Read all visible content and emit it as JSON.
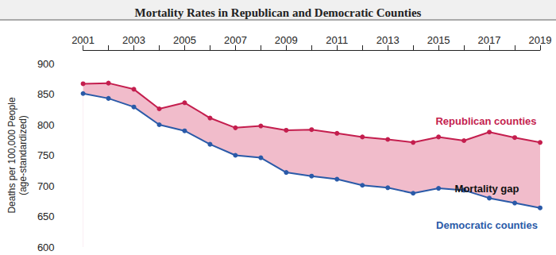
{
  "chart_data": {
    "type": "line",
    "title": "Mortality Rates in Republican and Democratic Counties",
    "y_label": "Deaths per 100,000 People (age-standardized)",
    "categories": [
      "2001",
      null,
      "2003",
      null,
      "2005",
      null,
      "2007",
      null,
      "2009",
      null,
      "2011",
      null,
      "2013",
      null,
      "2015",
      null,
      "2017",
      null,
      "2019"
    ],
    "series": [
      {
        "name": "Republican counties",
        "color": "#c41e4e",
        "marker": "circle",
        "values": [
          867,
          868,
          858,
          826,
          836,
          811,
          795,
          798,
          791,
          792,
          786,
          780,
          776,
          771,
          780,
          774,
          788,
          779,
          771
        ]
      },
      {
        "name": "Democratic counties",
        "color": "#2a5aa8",
        "marker": "circle",
        "values": [
          851,
          843,
          829,
          800,
          790,
          768,
          750,
          746,
          722,
          716,
          711,
          701,
          697,
          688,
          696,
          693,
          680,
          672,
          664
        ]
      }
    ],
    "annotations": [
      "Mortality gap"
    ],
    "ylim": [
      600,
      900
    ],
    "yticks": [
      600,
      650,
      700,
      750,
      800,
      850,
      900
    ],
    "grid": false
  }
}
